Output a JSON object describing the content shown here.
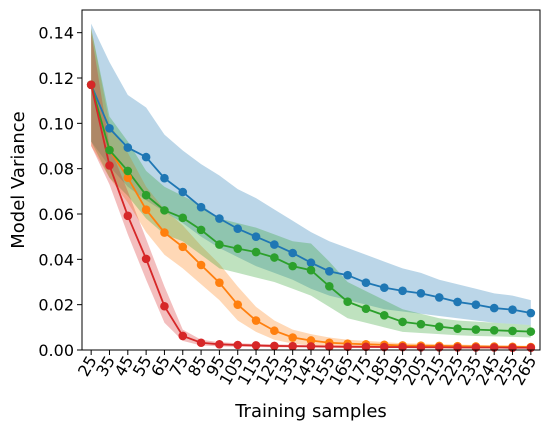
{
  "chart_data": {
    "type": "line",
    "title": "",
    "xlabel": "Training samples",
    "ylabel": "Model Variance",
    "x": [
      25,
      35,
      45,
      55,
      65,
      75,
      85,
      95,
      105,
      115,
      125,
      135,
      145,
      155,
      165,
      175,
      185,
      195,
      205,
      215,
      225,
      235,
      245,
      255,
      265
    ],
    "x_tick_labels": [
      "25",
      "35",
      "45",
      "55",
      "65",
      "75",
      "85",
      "95",
      "105",
      "115",
      "125",
      "135",
      "145",
      "155",
      "165",
      "175",
      "185",
      "195",
      "205",
      "215",
      "225",
      "235",
      "245",
      "255",
      "265"
    ],
    "ylim": [
      0,
      0.15
    ],
    "y_ticks": [
      0,
      0.02,
      0.04,
      0.06,
      0.08,
      0.1,
      0.12,
      0.14
    ],
    "y_tick_labels": [
      "0.00",
      "0.02",
      "0.04",
      "0.06",
      "0.08",
      "0.10",
      "0.12",
      "0.14"
    ],
    "grid": false,
    "legend": "none",
    "series": [
      {
        "color": "#1f77b4",
        "values": [
          0.117,
          0.0978,
          0.0893,
          0.0851,
          0.0758,
          0.0697,
          0.063,
          0.058,
          0.0535,
          0.05,
          0.0465,
          0.0428,
          0.0385,
          0.0347,
          0.033,
          0.0297,
          0.0275,
          0.0261,
          0.025,
          0.0232,
          0.0212,
          0.02,
          0.0185,
          0.0178,
          0.0163
        ],
        "upper": [
          0.144,
          0.127,
          0.1125,
          0.107,
          0.095,
          0.088,
          0.082,
          0.077,
          0.071,
          0.067,
          0.062,
          0.057,
          0.052,
          0.048,
          0.045,
          0.042,
          0.039,
          0.036,
          0.034,
          0.031,
          0.029,
          0.027,
          0.025,
          0.024,
          0.022
        ],
        "lower": [
          0.092,
          0.081,
          0.072,
          0.066,
          0.061,
          0.056,
          0.05,
          0.045,
          0.041,
          0.037,
          0.034,
          0.031,
          0.027,
          0.024,
          0.022,
          0.02,
          0.018,
          0.017,
          0.016,
          0.015,
          0.014,
          0.013,
          0.012,
          0.0115,
          0.011
        ]
      },
      {
        "color": "#ff7f0e",
        "values": [
          0.117,
          0.0882,
          0.076,
          0.0619,
          0.0518,
          0.0455,
          0.0375,
          0.0297,
          0.02,
          0.013,
          0.0085,
          0.0055,
          0.0042,
          0.0032,
          0.0028,
          0.0025,
          0.0023,
          0.002,
          0.0019,
          0.0018,
          0.0017,
          0.0016,
          0.0015,
          0.0014,
          0.0013
        ],
        "upper": [
          0.142,
          0.1,
          0.087,
          0.072,
          0.062,
          0.055,
          0.046,
          0.038,
          0.028,
          0.019,
          0.013,
          0.009,
          0.007,
          0.0055,
          0.0045,
          0.004,
          0.0035,
          0.003,
          0.0028,
          0.0026,
          0.0024,
          0.0022,
          0.0021,
          0.002,
          0.0019
        ],
        "lower": [
          0.09,
          0.076,
          0.065,
          0.052,
          0.042,
          0.036,
          0.029,
          0.022,
          0.013,
          0.008,
          0.0045,
          0.0028,
          0.002,
          0.0016,
          0.0014,
          0.0012,
          0.0011,
          0.001,
          0.0009,
          0.0009,
          0.0008,
          0.0008,
          0.0008,
          0.0007,
          0.0007
        ]
      },
      {
        "color": "#2ca02c",
        "values": [
          0.117,
          0.0882,
          0.079,
          0.0683,
          0.0616,
          0.0583,
          0.053,
          0.0465,
          0.0447,
          0.0432,
          0.0408,
          0.037,
          0.0352,
          0.0281,
          0.0213,
          0.0182,
          0.0153,
          0.0124,
          0.0114,
          0.0103,
          0.0094,
          0.009,
          0.0087,
          0.0084,
          0.0081
        ],
        "upper": [
          0.142,
          0.103,
          0.092,
          0.079,
          0.072,
          0.068,
          0.064,
          0.058,
          0.056,
          0.054,
          0.051,
          0.048,
          0.047,
          0.039,
          0.03,
          0.026,
          0.022,
          0.018,
          0.016,
          0.014,
          0.013,
          0.0125,
          0.012,
          0.0115,
          0.011
        ],
        "lower": [
          0.092,
          0.076,
          0.068,
          0.058,
          0.051,
          0.048,
          0.042,
          0.036,
          0.034,
          0.032,
          0.03,
          0.027,
          0.024,
          0.019,
          0.014,
          0.012,
          0.01,
          0.008,
          0.0075,
          0.007,
          0.0065,
          0.0062,
          0.006,
          0.0058,
          0.0055
        ]
      },
      {
        "color": "#d62728",
        "values": [
          0.117,
          0.0814,
          0.0592,
          0.0402,
          0.0193,
          0.0062,
          0.0032,
          0.0025,
          0.0022,
          0.002,
          0.0018,
          0.0017,
          0.0016,
          0.0015,
          0.0014,
          0.0014,
          0.0013,
          0.0013,
          0.0012,
          0.0012,
          0.0011,
          0.0011,
          0.0011,
          0.001,
          0.001
        ],
        "upper": [
          0.14,
          0.09,
          0.07,
          0.049,
          0.028,
          0.009,
          0.0045,
          0.0035,
          0.003,
          0.0027,
          0.0025,
          0.0023,
          0.0022,
          0.0021,
          0.002,
          0.0019,
          0.0018,
          0.0018,
          0.0017,
          0.0017,
          0.0016,
          0.0016,
          0.0015,
          0.0015,
          0.0015
        ],
        "lower": [
          0.09,
          0.073,
          0.051,
          0.031,
          0.012,
          0.004,
          0.002,
          0.0016,
          0.0014,
          0.0013,
          0.0012,
          0.0011,
          0.0011,
          0.001,
          0.001,
          0.0009,
          0.0009,
          0.0009,
          0.0008,
          0.0008,
          0.0008,
          0.0007,
          0.0007,
          0.0007,
          0.0007
        ]
      }
    ]
  }
}
